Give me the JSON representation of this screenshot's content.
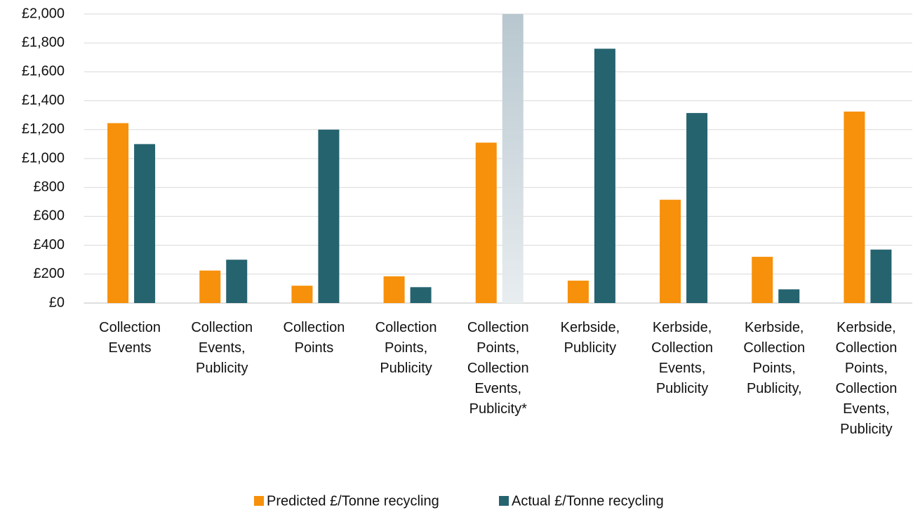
{
  "chart_data": {
    "type": "bar",
    "categories": [
      "Collection Events",
      "Collection Events, Publicity",
      "Collection Points",
      "Collection Points, Publicity",
      "Collection Points, Collection Events, Publicity*",
      "Kerbside, Publicity",
      "Kerbside, Collection Events, Publicity",
      "Kerbside, Collection Points, Publicity,",
      "Kerbside, Collection Points, Collection Events, Publicity"
    ],
    "series": [
      {
        "name": "Predicted £/Tonne recycling",
        "color": "#f7900a",
        "values": [
          1245,
          225,
          120,
          185,
          1110,
          155,
          715,
          320,
          1325
        ]
      },
      {
        "name": "Actual £/Tonne recycling",
        "color": "#25636f",
        "colors": [
          "#25636f",
          "#25636f",
          "#25636f",
          "#25636f",
          "#b8c7cf",
          "#25636f",
          "#25636f",
          "#25636f",
          "#25636f"
        ],
        "values": [
          1100,
          300,
          1200,
          110,
          2000,
          1760,
          1315,
          95,
          370
        ]
      }
    ],
    "ylim": [
      0,
      2000
    ],
    "yticks": [
      {
        "value": 0,
        "label": "£0"
      },
      {
        "value": 200,
        "label": "£200"
      },
      {
        "value": 400,
        "label": "£400"
      },
      {
        "value": 600,
        "label": "£600"
      },
      {
        "value": 800,
        "label": "£800"
      },
      {
        "value": 1000,
        "label": "£1,000"
      },
      {
        "value": 1200,
        "label": "£1,200"
      },
      {
        "value": 1400,
        "label": "£1,400"
      },
      {
        "value": 1600,
        "label": "£1,600"
      },
      {
        "value": 1800,
        "label": "£1,800"
      },
      {
        "value": 2000,
        "label": "£2,000"
      }
    ],
    "grid": true,
    "legend": "bottom"
  }
}
